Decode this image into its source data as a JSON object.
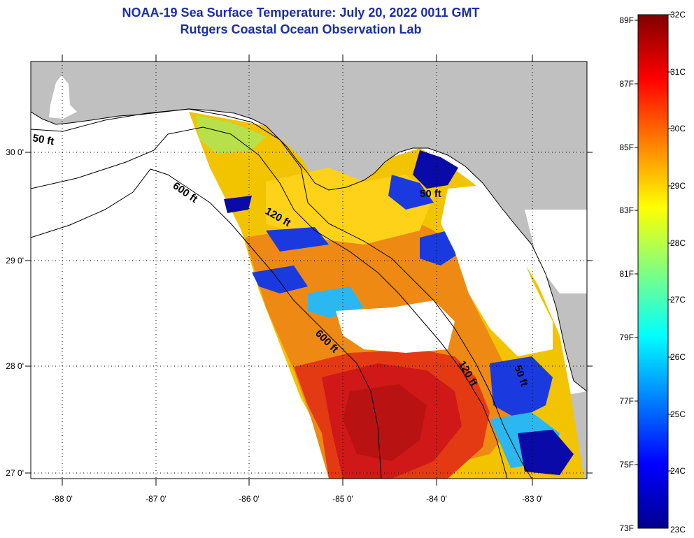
{
  "title": {
    "line1": "NOAA-19 Sea Surface Temperature:  July 20, 2022 0011 GMT",
    "line2": "Rutgers Coastal Ocean Observation Lab"
  },
  "map": {
    "lon_ticks": [
      "-88 0'",
      "-87 0'",
      "-86 0'",
      "-85 0'",
      "-84 0'",
      "-83 0'"
    ],
    "lat_ticks": [
      "30 0'",
      "29 0'",
      "28 0'",
      "27 0'"
    ],
    "contour_labels": [
      "50 ft",
      "600 ft",
      "120 ft",
      "50 ft",
      "600 ft",
      "120 ft",
      "50 ft"
    ],
    "colors": {
      "land": "#c0c0c0",
      "no_data": "#ffffff",
      "frame": "#000000"
    }
  },
  "colorbar": {
    "fahrenheit": [
      "89F",
      "87F",
      "85F",
      "83F",
      "81F",
      "79F",
      "77F",
      "75F",
      "73F"
    ],
    "celsius": [
      "32C",
      "31C",
      "30C",
      "29C",
      "28C",
      "27C",
      "26C",
      "25C",
      "24C",
      "23C"
    ],
    "range_c": [
      23,
      32
    ],
    "range_f": [
      73,
      89
    ],
    "gradient": [
      "#00008f",
      "#0000ff",
      "#0080ff",
      "#00ffff",
      "#80ff80",
      "#ffff00",
      "#ff8000",
      "#ff0000",
      "#800000"
    ]
  }
}
